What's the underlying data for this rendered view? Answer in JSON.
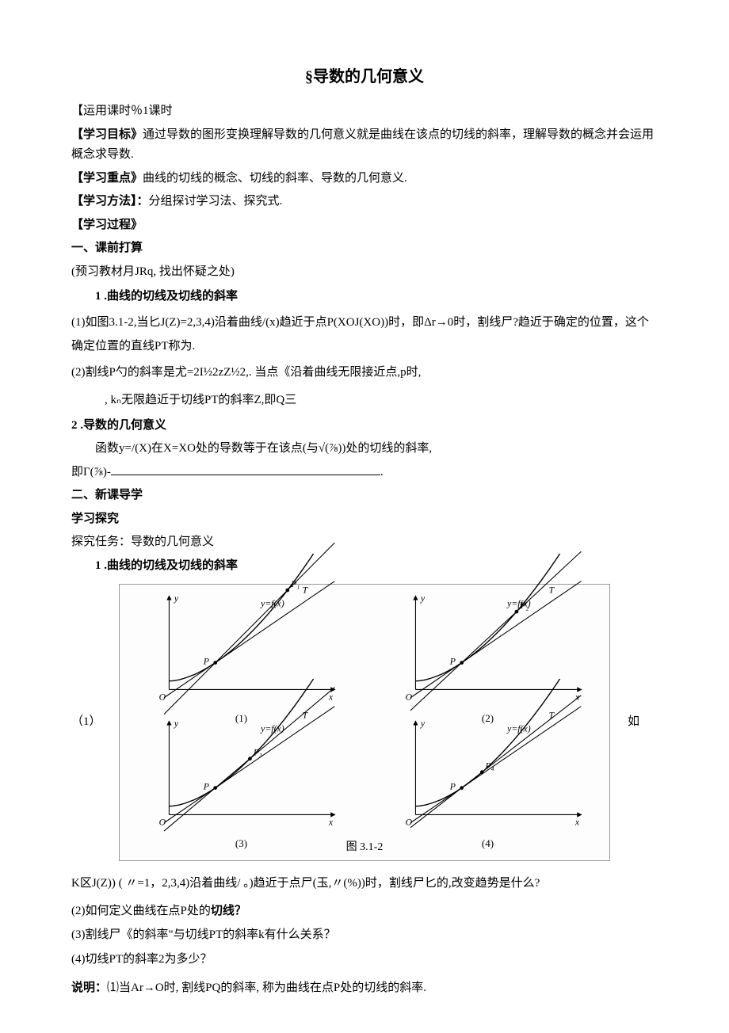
{
  "title": "§导数的几何意义",
  "schedule": {
    "label": "【运用课时％",
    "value": "1课时"
  },
  "goal": {
    "label": "【学习目标》",
    "text": "通过导数的图形变换理解导数的几何意义就是曲线在该点的切线的斜率，理解导数的概念并会运用概念求导数."
  },
  "focus": {
    "label": "【学习重点》",
    "text": "曲线的切线的概念、切线的斜率、导数的几何意义."
  },
  "method": {
    "label": "【学习方法】：",
    "text": "分组探讨学习法、探究式."
  },
  "process": {
    "label": "【学习过程》"
  },
  "prep_heading": "一、课前打算",
  "prep_note": "(预习教材月JRq, 找出怀疑之处)",
  "item1_heading": "1 .曲线的切线及切线的斜率",
  "item1_1": "(1)如图3.1-2,当匕J(Z)=2,3,4)沿着曲线/(x)趋近于点P(XOJ(XO))时，即Δr→0时，割线尸?趋近于确定的位置，这个确定位置的直线PT称为.",
  "item1_2": "(2)割线P勺的斜率是尤=2I½2zZ½2,. 当点《沿着曲线无限接近点,p时,",
  "item1_2b": ", kₙ无限趋近于切线PT的斜率Z,即Q三",
  "item2_heading": "2 .导数的几何意义",
  "item2_body": "函数y=/(X)在X=XO处的导数等于在该点(与√(⅞))处的切线的斜率,",
  "item2_eq": "即Γ(⅞)-",
  "sec2_heading": "二、新课导学",
  "explore_heading": "学习探究",
  "explore_task": "探究任务：导数的几何意义",
  "explore_item1": "1 .曲线的切线及切线的斜率",
  "left_paren": "（1）",
  "right_word": "如",
  "figure": {
    "caption": "图 3.1-2",
    "curve_label": "y=f(x)",
    "y_label": "y",
    "x_label": "x",
    "origin_label": "O",
    "P_label": "P",
    "T_label": "T",
    "subplots": [
      {
        "idx": "(1)",
        "moving": "P₁"
      },
      {
        "idx": "(2)",
        "moving": "P₂"
      },
      {
        "idx": "(3)",
        "moving": "P₃"
      },
      {
        "idx": "(4)",
        "moving": "P₄"
      }
    ],
    "style": {
      "axis_color": "#000000",
      "curve_color": "#000000",
      "secant_color": "#000000",
      "tangent_color": "#000000",
      "panel_bg": "#fdfdfd",
      "stroke_width": 1,
      "label_fontsize": 11
    }
  },
  "after_fig_1": "K区J(Z)) ( 〃=1，2,3,4)沿着曲线/ 。)趋近于点尸(玉,〃(%))时，割线尸匕的,改变趋势是什么?",
  "q2": "(2)如何定义曲线在点P处的",
  "q2_bold": "切线？",
  "q3": "(3)割线尸《的斜率\"与切线PT的斜率k有什么关系？",
  "q4": "(4)切线PT的斜率2为多少？",
  "note_label": "说明：",
  "note_text": "⑴当Ar→O时, 割线PQ的斜率, 称为曲线在点P处的切线的斜率."
}
